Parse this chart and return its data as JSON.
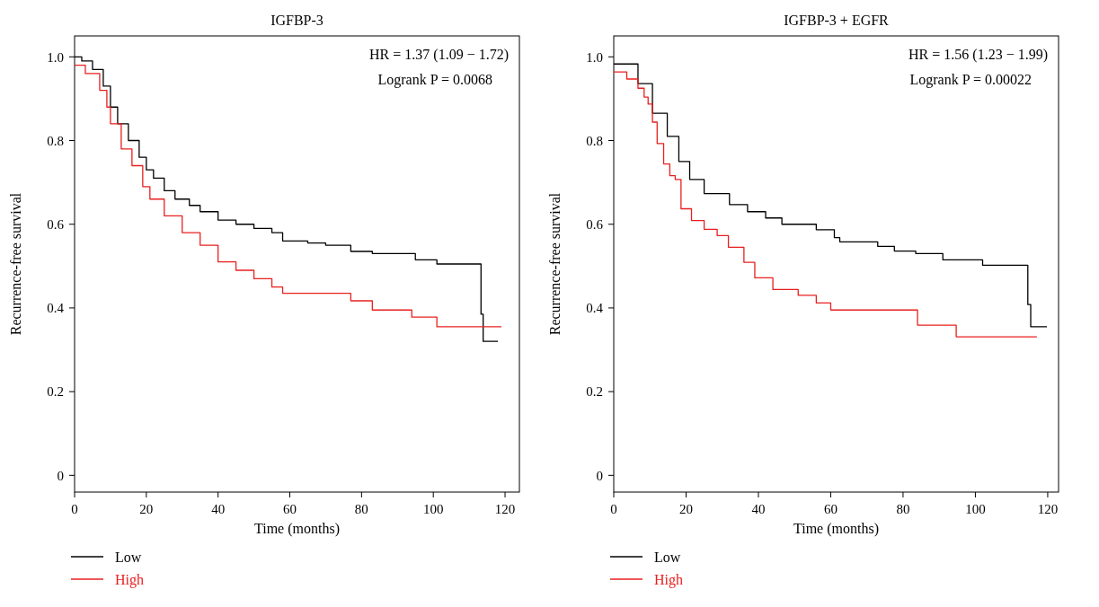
{
  "chart_data": [
    {
      "type": "step",
      "title": "IGFBP-3",
      "xlabel": "Time (months)",
      "ylabel": "Recurrence-free survival",
      "xlim": [
        0,
        124
      ],
      "xticks": [
        0,
        20,
        40,
        60,
        80,
        100,
        120
      ],
      "ylim": [
        -0.04,
        1.05
      ],
      "yticks": [
        0,
        0.2,
        0.4,
        0.6,
        0.8,
        {
          "value": 1,
          "label": "1.0"
        }
      ],
      "legend": "bottom",
      "annotations": [
        "HR = 1.37 (1.09 − 1.72)",
        "Logrank P = 0.0068"
      ],
      "series": [
        {
          "name": "Low",
          "color": "#000000",
          "x": [
            0,
            2,
            5,
            8,
            10,
            12,
            15,
            18,
            20,
            22,
            25,
            28,
            32,
            35,
            40,
            45,
            50,
            55,
            58,
            65,
            70,
            77,
            83,
            90,
            95,
            101,
            113.3,
            113.9,
            118
          ],
          "values": [
            1.0,
            0.99,
            0.97,
            0.93,
            0.88,
            0.84,
            0.8,
            0.76,
            0.73,
            0.71,
            0.68,
            0.66,
            0.645,
            0.63,
            0.61,
            0.6,
            0.59,
            0.58,
            0.56,
            0.555,
            0.55,
            0.535,
            0.53,
            0.53,
            0.515,
            0.505,
            0.385,
            0.32,
            0.32
          ]
        },
        {
          "name": "High",
          "color": "#e8201f",
          "x": [
            0,
            3,
            7,
            9,
            10,
            13,
            16,
            19,
            21,
            25,
            30,
            35,
            40,
            45,
            50,
            55,
            58,
            77,
            83,
            94,
            101,
            119
          ],
          "values": [
            0.98,
            0.96,
            0.92,
            0.88,
            0.84,
            0.78,
            0.74,
            0.69,
            0.66,
            0.62,
            0.58,
            0.55,
            0.51,
            0.49,
            0.47,
            0.45,
            0.435,
            0.417,
            0.395,
            0.378,
            0.355,
            0.355
          ]
        }
      ]
    },
    {
      "type": "step",
      "title": "IGFBP-3 + EGFR",
      "xlabel": "Time (months)",
      "ylabel": "Recurrence-free survival",
      "xlim": [
        0,
        123
      ],
      "xticks": [
        0,
        20,
        40,
        60,
        80,
        100,
        120
      ],
      "ylim": [
        -0.04,
        1.05
      ],
      "yticks": [
        0,
        0.2,
        0.4,
        0.6,
        0.8,
        {
          "value": 1,
          "label": "1.0"
        }
      ],
      "legend": "bottom",
      "annotations": [
        "HR = 1.56 (1.23 − 1.99)",
        "Logrank P = 0.00022"
      ],
      "series": [
        {
          "name": "Low",
          "color": "#000000",
          "x": [
            0,
            6.7,
            10.7,
            14.8,
            18,
            21,
            25,
            32,
            37,
            42,
            46.5,
            56,
            61,
            62.5,
            73,
            77.6,
            83.5,
            91,
            102,
            114.5,
            115.3,
            119.8
          ],
          "values": [
            0.983,
            0.936,
            0.865,
            0.81,
            0.75,
            0.707,
            0.673,
            0.647,
            0.63,
            0.615,
            0.6,
            0.587,
            0.568,
            0.558,
            0.547,
            0.536,
            0.53,
            0.515,
            0.502,
            0.408,
            0.355,
            0.355
          ]
        },
        {
          "name": "High",
          "color": "#e8201f",
          "x": [
            0,
            3.6,
            6.7,
            8.4,
            9.5,
            10.7,
            12,
            13.8,
            15.5,
            17,
            18.6,
            21.5,
            25,
            28.6,
            31.7,
            36,
            39,
            44,
            51,
            56,
            60,
            84,
            94.7,
            117
          ],
          "values": [
            0.964,
            0.947,
            0.925,
            0.904,
            0.887,
            0.844,
            0.793,
            0.744,
            0.716,
            0.707,
            0.637,
            0.609,
            0.588,
            0.573,
            0.545,
            0.509,
            0.472,
            0.444,
            0.43,
            0.412,
            0.395,
            0.359,
            0.331,
            0.331
          ]
        }
      ]
    }
  ]
}
